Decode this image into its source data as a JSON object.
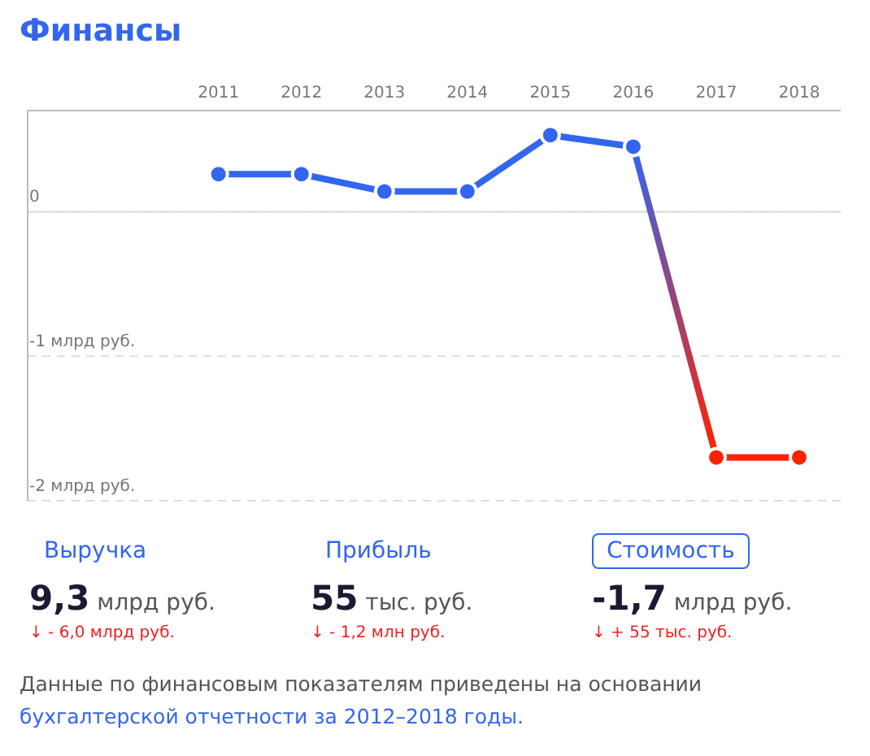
{
  "chart_data": {
    "type": "line",
    "title": "Финансы",
    "categories": [
      "2011",
      "2012",
      "2013",
      "2014",
      "2015",
      "2016",
      "2017",
      "2018"
    ],
    "series": [
      {
        "colors": [
          "#3366ee",
          "#3366ee",
          "#3366ee",
          "#3366ee",
          "#3366ee",
          "#3366ee",
          "#ff2200",
          "#ff2200"
        ],
        "values": [
          0.26,
          0.26,
          0.14,
          0.14,
          0.53,
          0.45,
          -1.7,
          -1.7
        ]
      }
    ],
    "ylim": [
      -2,
      0.7
    ],
    "yticks": [
      0,
      {
        "value": -1,
        "label": "-1 млрд руб."
      },
      {
        "value": -2,
        "label": "-2 млрд руб."
      }
    ],
    "grid": "y",
    "marker": "circle",
    "line_style": "solid",
    "ref_lines": [
      {
        "axis": "y",
        "value": 0,
        "color": "#dddddd",
        "line_style": "solid"
      }
    ],
    "annotations": [
      "Выручка",
      "9,3 млрд руб.",
      "↓ - 6,0 млрд руб.",
      "Прибыль",
      "55 тыс. руб.",
      "↓ - 1,2 млн руб.",
      "Стоимость",
      "-1,7 млрд руб.",
      "↓ + 55 тыс. руб.",
      "Данные по финансовым показателям приведены на основании ",
      "бухгалтерской отчетности за 2012–2018 годы."
    ]
  }
}
